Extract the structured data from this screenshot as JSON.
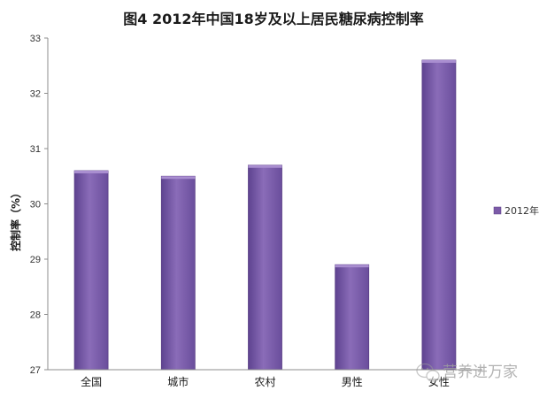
{
  "chart_data": {
    "type": "bar",
    "title": "图4 2012年中国18岁及以上居民糖尿病控制率",
    "ylabel": "控制率（%）",
    "xlabel": "",
    "categories": [
      "全国",
      "城市",
      "农村",
      "男性",
      "女性"
    ],
    "series": [
      {
        "name": "2012年",
        "values": [
          30.6,
          30.5,
          30.7,
          28.9,
          32.6
        ]
      }
    ],
    "ylim": [
      27,
      33
    ],
    "yticks": [
      27,
      28,
      29,
      30,
      31,
      32,
      33
    ],
    "grid": false,
    "legend": "right",
    "colors": {
      "bar": "#8060a8",
      "bar_dark": "#5a3f86",
      "bar_light": "#a98ed0",
      "axis": "#8c8c8c"
    }
  },
  "watermark": {
    "text": "营养进万家",
    "icon": "wechat-icon"
  }
}
